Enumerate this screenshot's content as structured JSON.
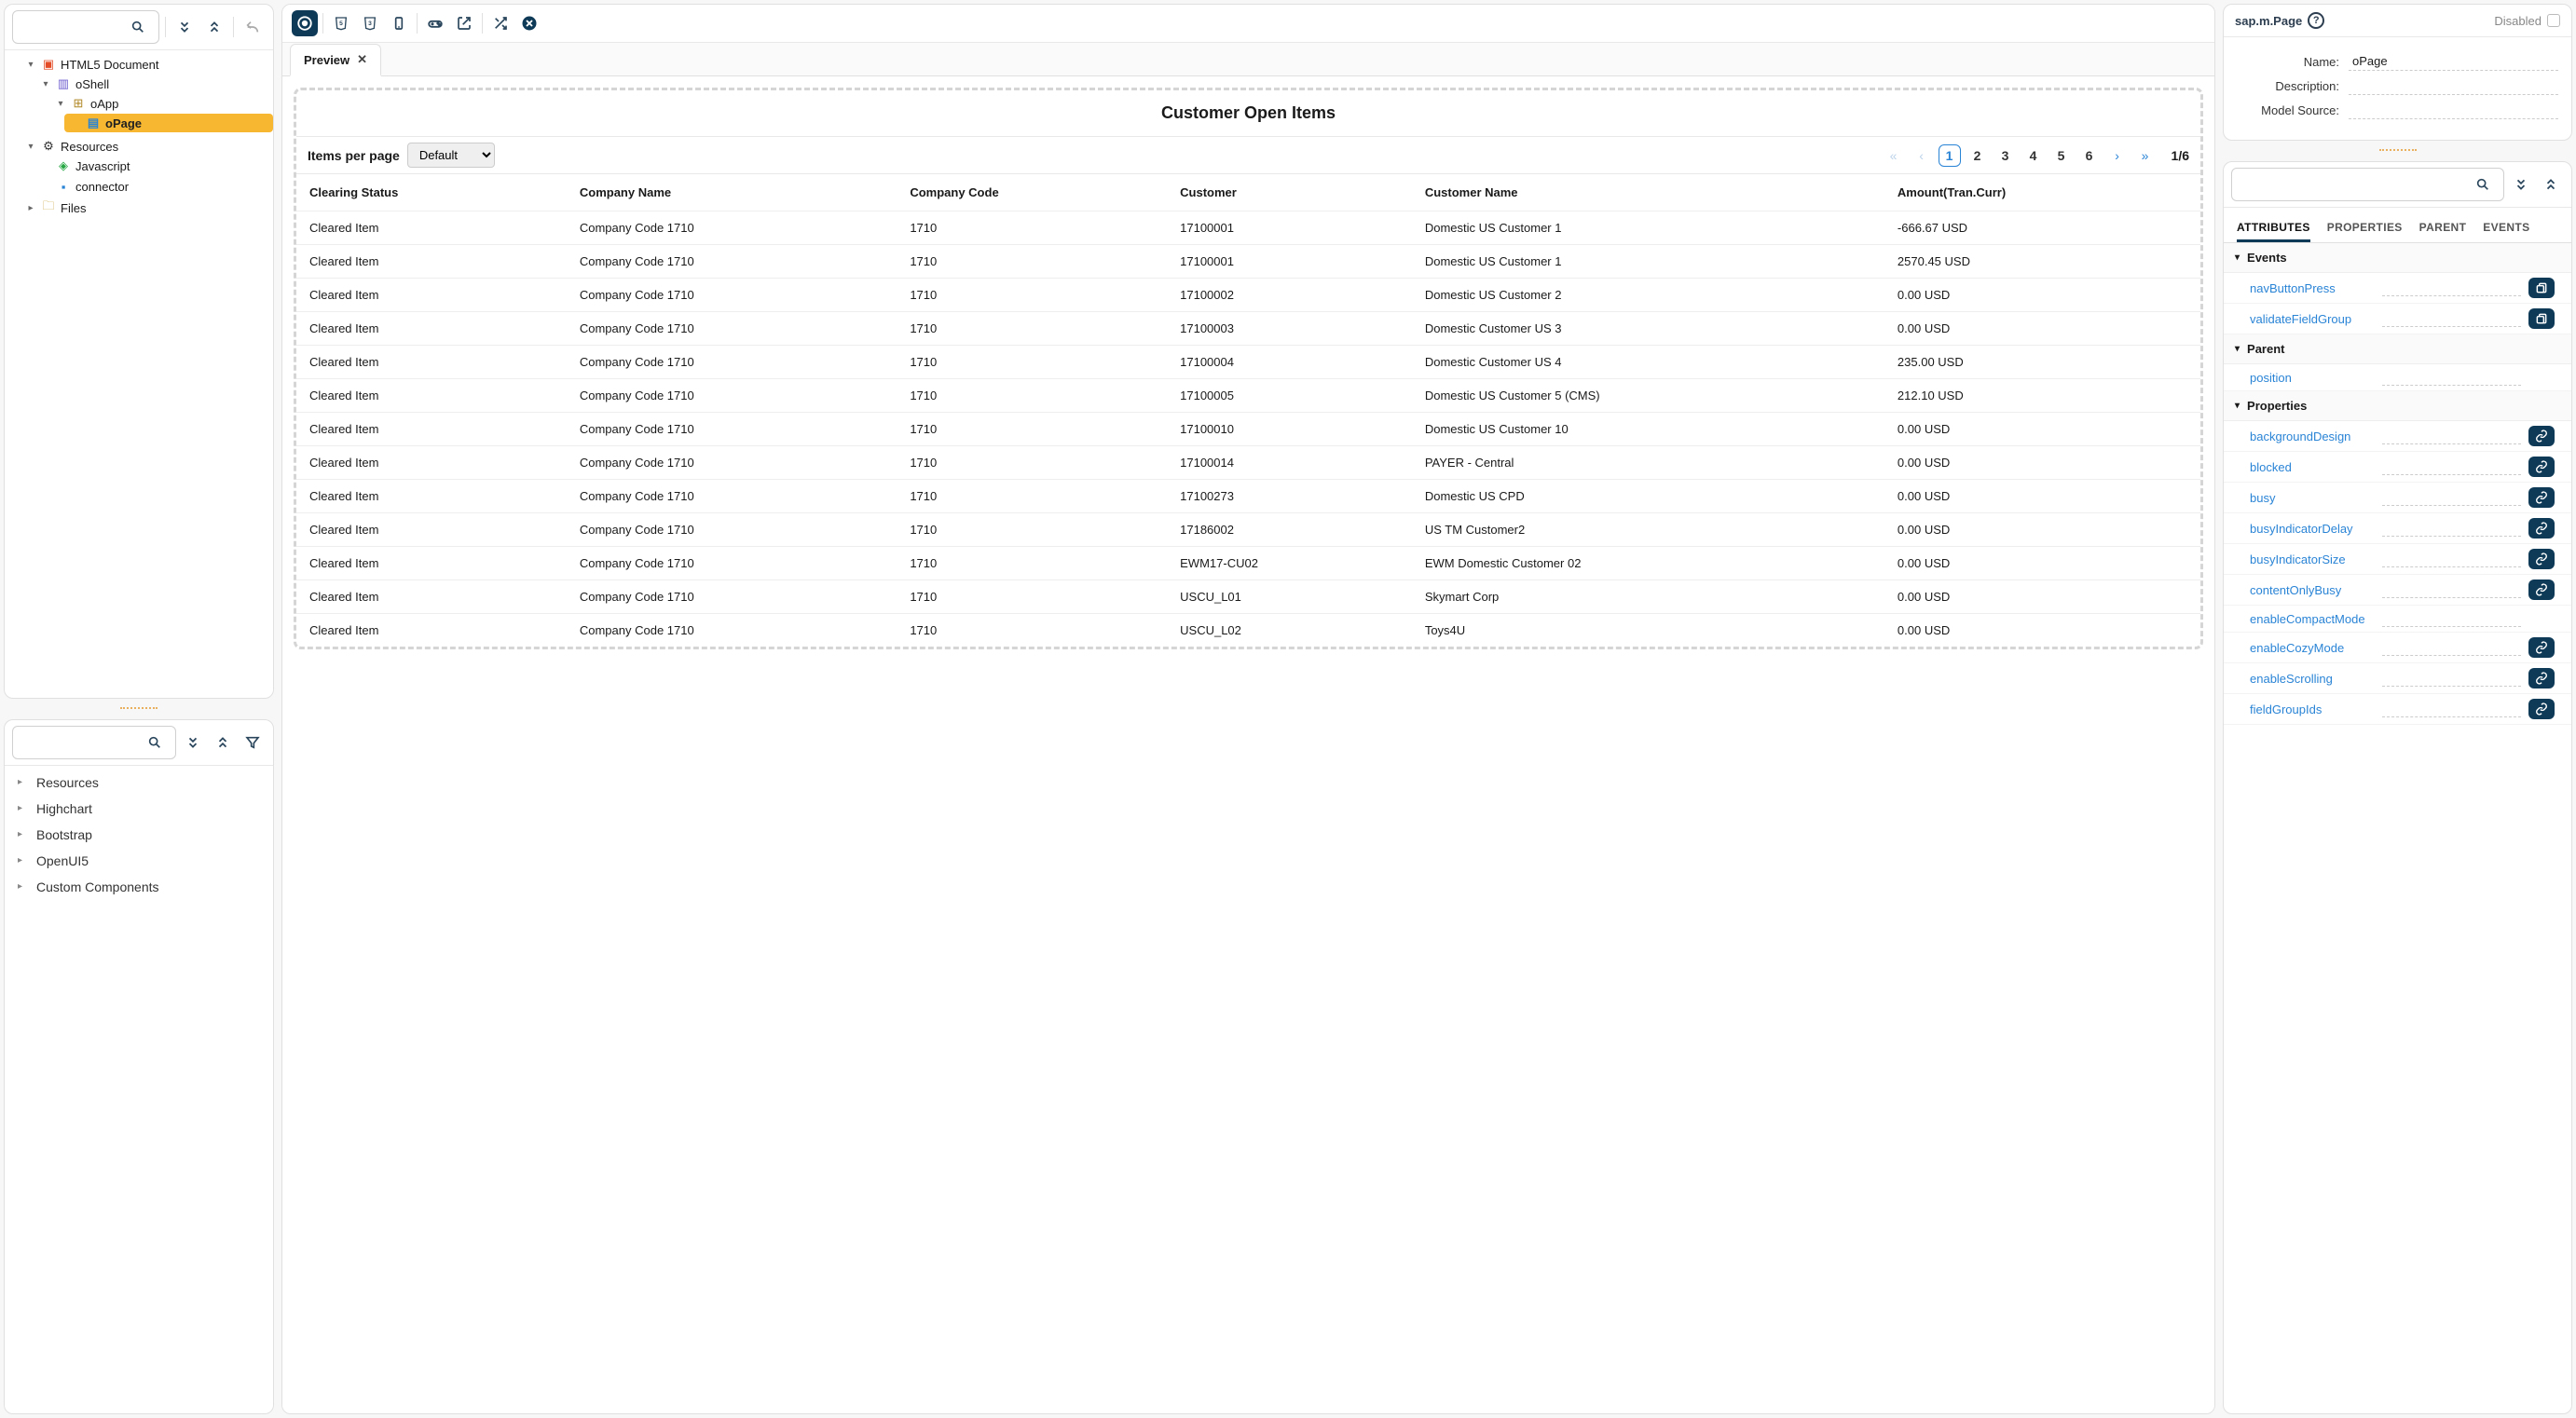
{
  "colors": {
    "accent_dark": "#0e3a57",
    "accent_blue": "#2a84d6",
    "highlight": "#f7b731"
  },
  "left_top": {
    "search_placeholder": "",
    "tree": [
      {
        "icon": "html",
        "label": "HTML5 Document",
        "children": [
          {
            "icon": "box",
            "label": "oShell",
            "children": [
              {
                "icon": "grid",
                "label": "oApp",
                "children": [
                  {
                    "icon": "page",
                    "label": "oPage",
                    "selected": true
                  }
                ]
              }
            ]
          }
        ]
      },
      {
        "icon": "res",
        "label": "Resources",
        "children": [
          {
            "icon": "js",
            "label": "Javascript"
          },
          {
            "icon": "conn",
            "label": "connector"
          }
        ]
      },
      {
        "icon": "files",
        "label": "Files"
      }
    ]
  },
  "left_bottom": {
    "search_placeholder": "",
    "items": [
      "Resources",
      "Highchart",
      "Bootstrap",
      "OpenUI5",
      "Custom Components"
    ]
  },
  "center": {
    "tab_label": "Preview",
    "page_title": "Customer Open Items",
    "items_per_page_label": "Items per page",
    "items_per_page_value": "Default",
    "page_count_label": "1/6",
    "pages": [
      1,
      2,
      3,
      4,
      5,
      6
    ],
    "current_page": 1,
    "columns": [
      "Clearing Status",
      "Company Name",
      "Company Code",
      "Customer",
      "Customer Name",
      "Amount(Tran.Curr)"
    ],
    "rows": [
      [
        "Cleared Item",
        "Company Code 1710",
        "1710",
        "17100001",
        "Domestic US Customer 1",
        "-666.67 USD"
      ],
      [
        "Cleared Item",
        "Company Code 1710",
        "1710",
        "17100001",
        "Domestic US Customer 1",
        "2570.45 USD"
      ],
      [
        "Cleared Item",
        "Company Code 1710",
        "1710",
        "17100002",
        "Domestic US Customer 2",
        "0.00 USD"
      ],
      [
        "Cleared Item",
        "Company Code 1710",
        "1710",
        "17100003",
        "Domestic Customer US 3",
        "0.00 USD"
      ],
      [
        "Cleared Item",
        "Company Code 1710",
        "1710",
        "17100004",
        "Domestic Customer US 4",
        "235.00 USD"
      ],
      [
        "Cleared Item",
        "Company Code 1710",
        "1710",
        "17100005",
        "Domestic US Customer 5 (CMS)",
        "212.10 USD"
      ],
      [
        "Cleared Item",
        "Company Code 1710",
        "1710",
        "17100010",
        "Domestic US Customer 10",
        "0.00 USD"
      ],
      [
        "Cleared Item",
        "Company Code 1710",
        "1710",
        "17100014",
        "PAYER - Central",
        "0.00 USD"
      ],
      [
        "Cleared Item",
        "Company Code 1710",
        "1710",
        "17100273",
        "Domestic US CPD",
        "0.00 USD"
      ],
      [
        "Cleared Item",
        "Company Code 1710",
        "1710",
        "17186002",
        "US TM Customer2",
        "0.00 USD"
      ],
      [
        "Cleared Item",
        "Company Code 1710",
        "1710",
        "EWM17-CU02",
        "EWM Domestic Customer 02",
        "0.00 USD"
      ],
      [
        "Cleared Item",
        "Company Code 1710",
        "1710",
        "USCU_L01",
        "Skymart Corp",
        "0.00 USD"
      ],
      [
        "Cleared Item",
        "Company Code 1710",
        "1710",
        "USCU_L02",
        "Toys4U",
        "0.00 USD"
      ]
    ]
  },
  "right_top": {
    "type_label": "sap.m.Page",
    "disabled_label": "Disabled",
    "fields": {
      "name_label": "Name:",
      "name_value": "oPage",
      "description_label": "Description:",
      "description_value": "",
      "model_source_label": "Model Source:",
      "model_source_value": ""
    }
  },
  "right_bottom": {
    "search_placeholder": "",
    "tabs": [
      "ATTRIBUTES",
      "PROPERTIES",
      "PARENT",
      "EVENTS"
    ],
    "active_tab": 0,
    "groups": [
      {
        "name": "Events",
        "items": [
          {
            "name": "navButtonPress",
            "btn": "paste"
          },
          {
            "name": "validateFieldGroup",
            "btn": "paste"
          }
        ]
      },
      {
        "name": "Parent",
        "items": [
          {
            "name": "position",
            "btn": ""
          }
        ]
      },
      {
        "name": "Properties",
        "items": [
          {
            "name": "backgroundDesign",
            "btn": "link"
          },
          {
            "name": "blocked",
            "btn": "link"
          },
          {
            "name": "busy",
            "btn": "link"
          },
          {
            "name": "busyIndicatorDelay",
            "btn": "link"
          },
          {
            "name": "busyIndicatorSize",
            "btn": "link"
          },
          {
            "name": "contentOnlyBusy",
            "btn": "link"
          },
          {
            "name": "enableCompactMode",
            "btn": ""
          },
          {
            "name": "enableCozyMode",
            "btn": "link"
          },
          {
            "name": "enableScrolling",
            "btn": "link"
          },
          {
            "name": "fieldGroupIds",
            "btn": "link"
          }
        ]
      }
    ]
  }
}
